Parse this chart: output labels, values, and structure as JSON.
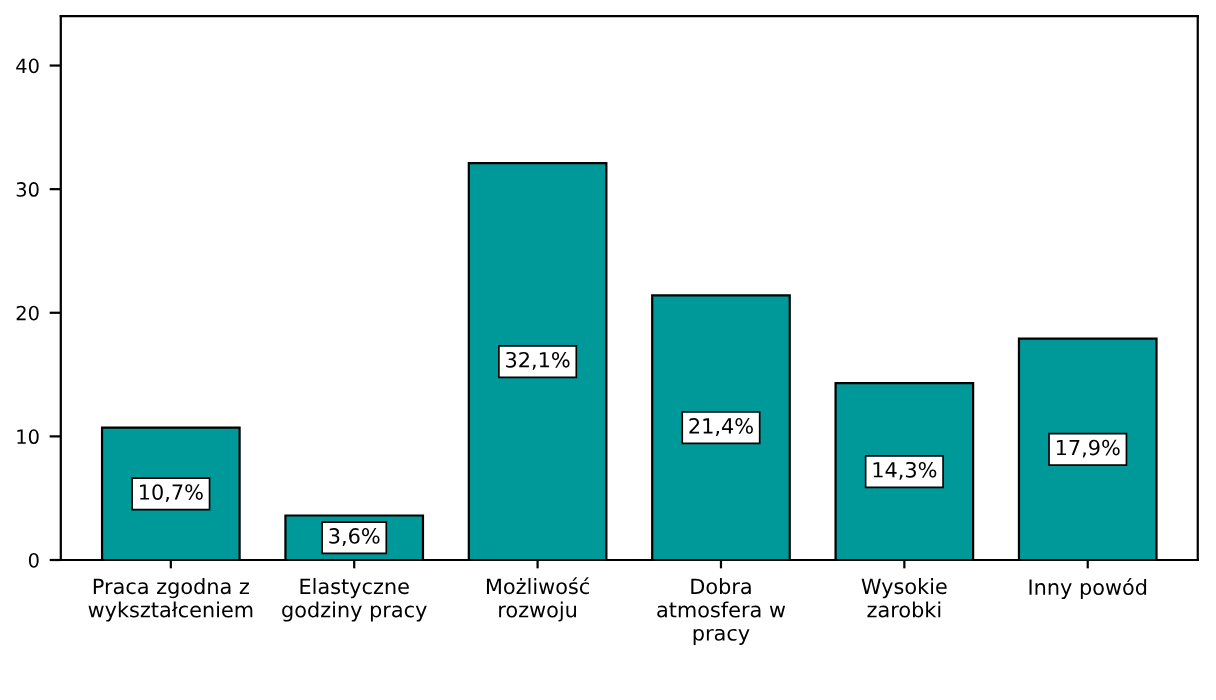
{
  "chart_data": {
    "type": "bar",
    "categories": [
      "Praca zgodna z\nwykształceniem",
      "Elastyczne\ngodziny pracy",
      "Możliwość\nrozwoju",
      "Dobra\natmosfera w\npracy",
      "Wysokie\nzarobki",
      "Inny powód"
    ],
    "values": [
      10.7,
      3.6,
      32.1,
      21.4,
      14.3,
      17.9
    ],
    "value_labels": [
      "10,7%",
      "3,6%",
      "32,1%",
      "21,4%",
      "14,3%",
      "17,9%"
    ],
    "color": "#009999",
    "ylim": [
      0,
      44
    ],
    "yticks": [
      0,
      10,
      20,
      30,
      40
    ],
    "grid": false
  }
}
